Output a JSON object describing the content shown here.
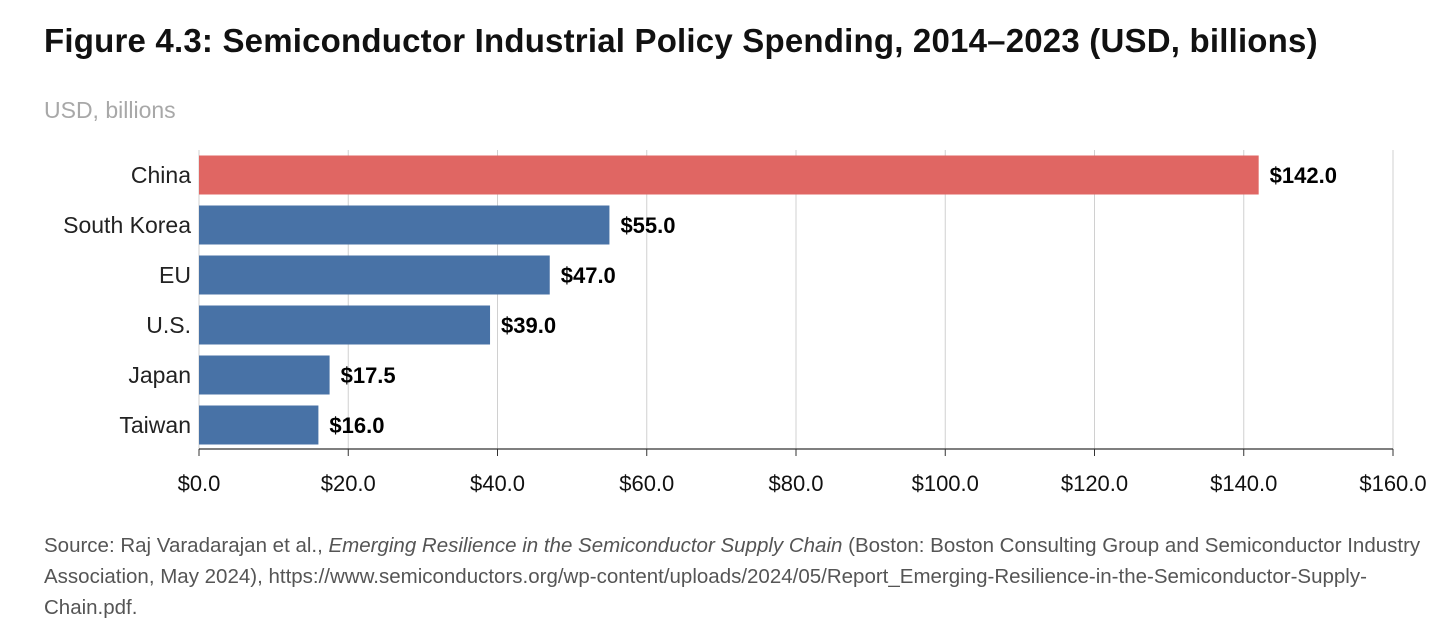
{
  "header": {
    "title": "Figure 4.3: Semiconductor Industrial Policy Spending, 2014–2023 (USD, billions)",
    "subtitle": "USD, billions"
  },
  "source": {
    "prefix": "Source: Raj Varadarajan et al., ",
    "italic_title": "Emerging Resilience in the Semiconductor Supply Chain",
    "rest": " (Boston: Boston Consulting Group and Semiconductor Industry Association, May 2024), https://www.semiconductors.org/wp-content/uploads/2024/05/Report_Emerging-Resilience-in-the-Semiconductor-Supply-Chain.pdf."
  },
  "colors": {
    "highlight": "#e06663",
    "default": "#4872a6",
    "grid": "#d0d0d0",
    "axis": "#333333"
  },
  "chart_data": {
    "type": "bar",
    "orientation": "horizontal",
    "title": "Figure 4.3: Semiconductor Industrial Policy Spending, 2014–2023 (USD, billions)",
    "ylabel": "USD, billions",
    "categories": [
      "China",
      "South Korea",
      "EU",
      "U.S.",
      "Japan",
      "Taiwan"
    ],
    "values": [
      142.0,
      55.0,
      47.0,
      39.0,
      17.5,
      16.0
    ],
    "value_labels": [
      "$142.0",
      "$55.0",
      "$47.0",
      "$39.0",
      "$17.5",
      "$16.0"
    ],
    "highlight_category": "China",
    "xlim": [
      0,
      160
    ],
    "xticks": [
      0,
      20,
      40,
      60,
      80,
      100,
      120,
      140,
      160
    ],
    "xtick_labels": [
      "$0.0",
      "$20.0",
      "$40.0",
      "$60.0",
      "$80.0",
      "$100.0",
      "$120.0",
      "$140.0",
      "$160.0"
    ],
    "grid": true,
    "legend": "none"
  }
}
